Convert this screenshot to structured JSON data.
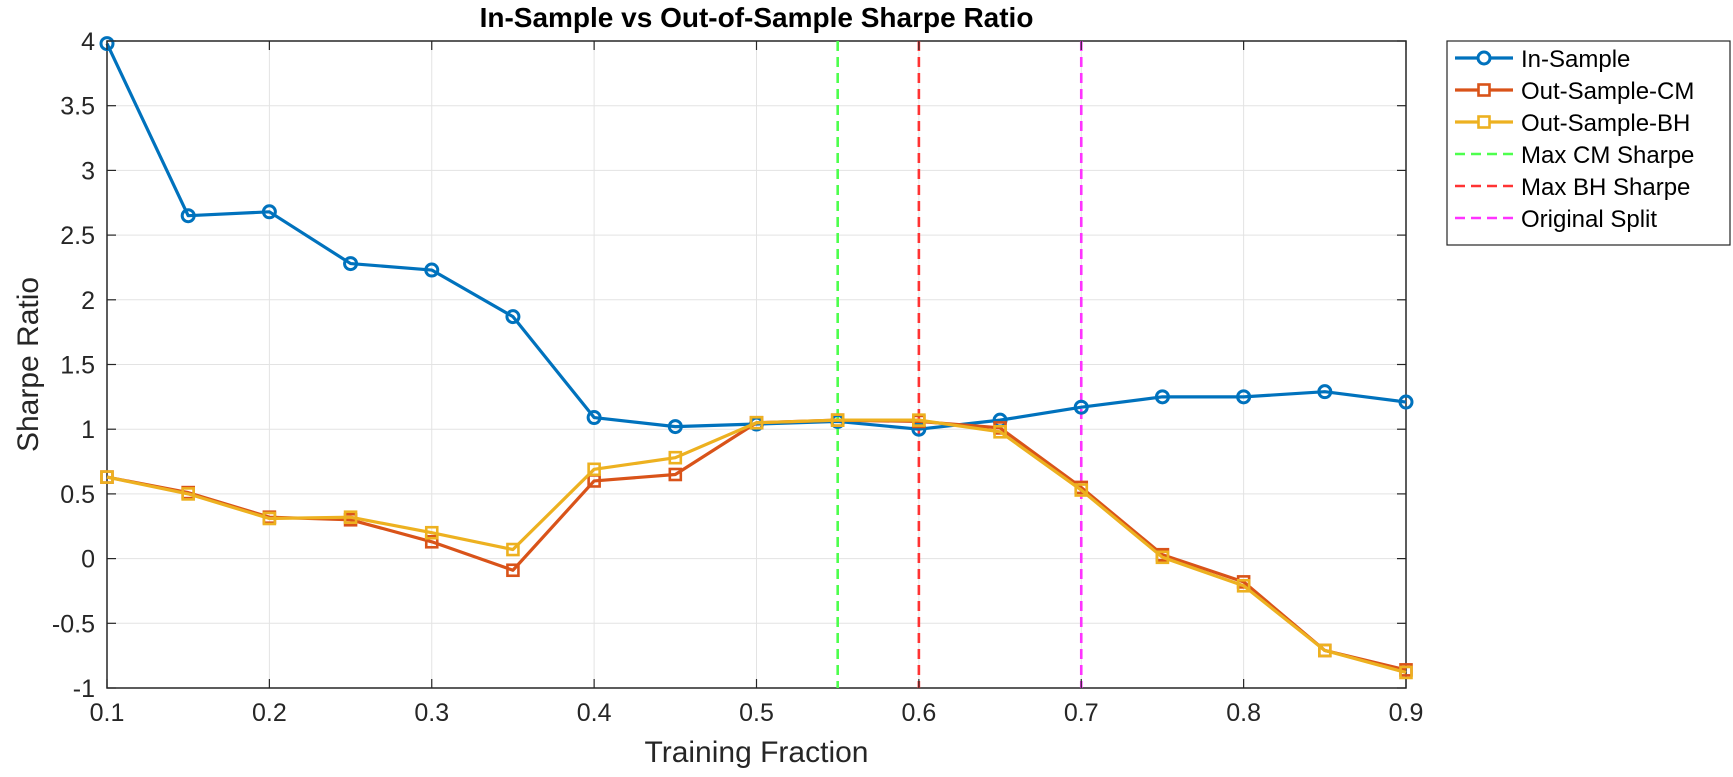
{
  "chart_data": {
    "type": "line",
    "title": "In-Sample vs Out-of-Sample Sharpe Ratio",
    "xlabel": "Training Fraction",
    "ylabel": "Sharpe Ratio",
    "xlim": [
      0.1,
      0.9
    ],
    "ylim": [
      -1,
      4
    ],
    "xticks": [
      "0.1",
      "0.2",
      "0.3",
      "0.4",
      "0.5",
      "0.6",
      "0.7",
      "0.8",
      "0.9"
    ],
    "yticks": [
      "-1",
      "-0.5",
      "0",
      "0.5",
      "1",
      "1.5",
      "2",
      "2.5",
      "3",
      "3.5",
      "4"
    ],
    "grid": true,
    "legend_position": "outside top-right",
    "x": [
      0.1,
      0.15,
      0.2,
      0.25,
      0.3,
      0.35,
      0.4,
      0.45,
      0.5,
      0.55,
      0.6,
      0.65,
      0.7,
      0.75,
      0.8,
      0.85,
      0.9
    ],
    "series": [
      {
        "name": "In-Sample",
        "color": "#0072BD",
        "marker": "circle",
        "values": [
          3.98,
          2.65,
          2.68,
          2.28,
          2.23,
          1.87,
          1.09,
          1.02,
          1.04,
          1.06,
          1.0,
          1.07,
          1.17,
          1.25,
          1.25,
          1.29,
          1.21
        ]
      },
      {
        "name": "Out-Sample-CM",
        "color": "#D95319",
        "marker": "square",
        "values": [
          0.63,
          0.51,
          0.32,
          0.3,
          0.13,
          -0.09,
          0.6,
          0.65,
          1.05,
          1.07,
          1.06,
          1.01,
          0.55,
          0.03,
          -0.18,
          -0.71,
          -0.86
        ]
      },
      {
        "name": "Out-Sample-BH",
        "color": "#EDB120",
        "marker": "square",
        "values": [
          0.63,
          0.5,
          0.31,
          0.32,
          0.2,
          0.07,
          0.69,
          0.78,
          1.05,
          1.07,
          1.07,
          0.98,
          0.53,
          0.01,
          -0.21,
          -0.71,
          -0.88
        ]
      }
    ],
    "vertical_lines": [
      {
        "name": "Max CM Sharpe",
        "x": 0.55,
        "color": "#4DFF4D"
      },
      {
        "name": "Max BH Sharpe",
        "x": 0.6,
        "color": "#FF3333"
      },
      {
        "name": "Original Split",
        "x": 0.7,
        "color": "#FF33FF"
      }
    ]
  }
}
